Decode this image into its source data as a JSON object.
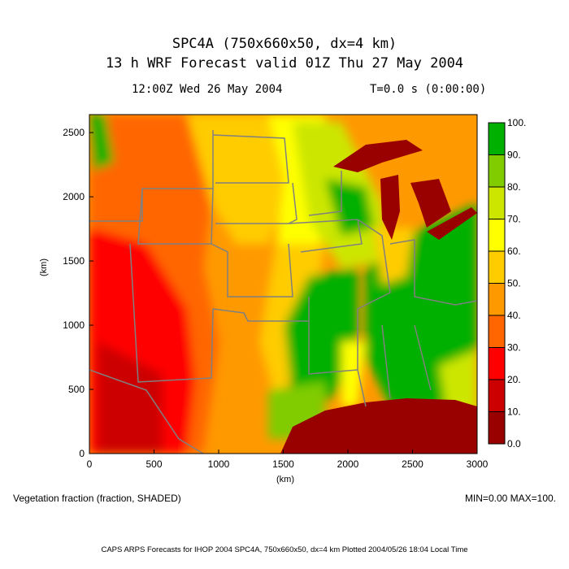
{
  "header": {
    "title_line1": "SPC4A (750x660x50, dx=4 km)",
    "title_line2": "13 h WRF Forecast valid 01Z Thu 27 May 2004",
    "init_time": "12:00Z Wed 26 May 2004",
    "model_time": "T=0.0 s (0:00:00)"
  },
  "chart_data": {
    "type": "heatmap",
    "field": "Vegetation fraction (fraction, SHADED)",
    "min_max": "MIN=0.00 MAX=100.",
    "xlabel": "(km)",
    "ylabel": "(km)",
    "xlim": [
      0,
      3000
    ],
    "ylim": [
      0,
      2640
    ],
    "x_ticks": [
      "0",
      "500",
      "1000",
      "1500",
      "2000",
      "2500",
      "3000"
    ],
    "y_ticks": [
      "0",
      "500",
      "1000",
      "1500",
      "2000",
      "2500"
    ],
    "colorbar": {
      "levels": [
        "0.0",
        "10.",
        "20.",
        "30.",
        "40.",
        "50.",
        "60.",
        "70.",
        "80.",
        "90.",
        "100."
      ],
      "colors": [
        "#990000",
        "#cc0000",
        "#ff0000",
        "#ff6600",
        "#ff9900",
        "#ffcc00",
        "#ffff00",
        "#cce600",
        "#80cc00",
        "#00b000"
      ]
    }
  },
  "footer": {
    "credit": "CAPS ARPS Forecasts for IHOP 2004   SPC4A, 750x660x50, dx=4 km   Plotted 2004/05/26 18:04 Local Time"
  }
}
